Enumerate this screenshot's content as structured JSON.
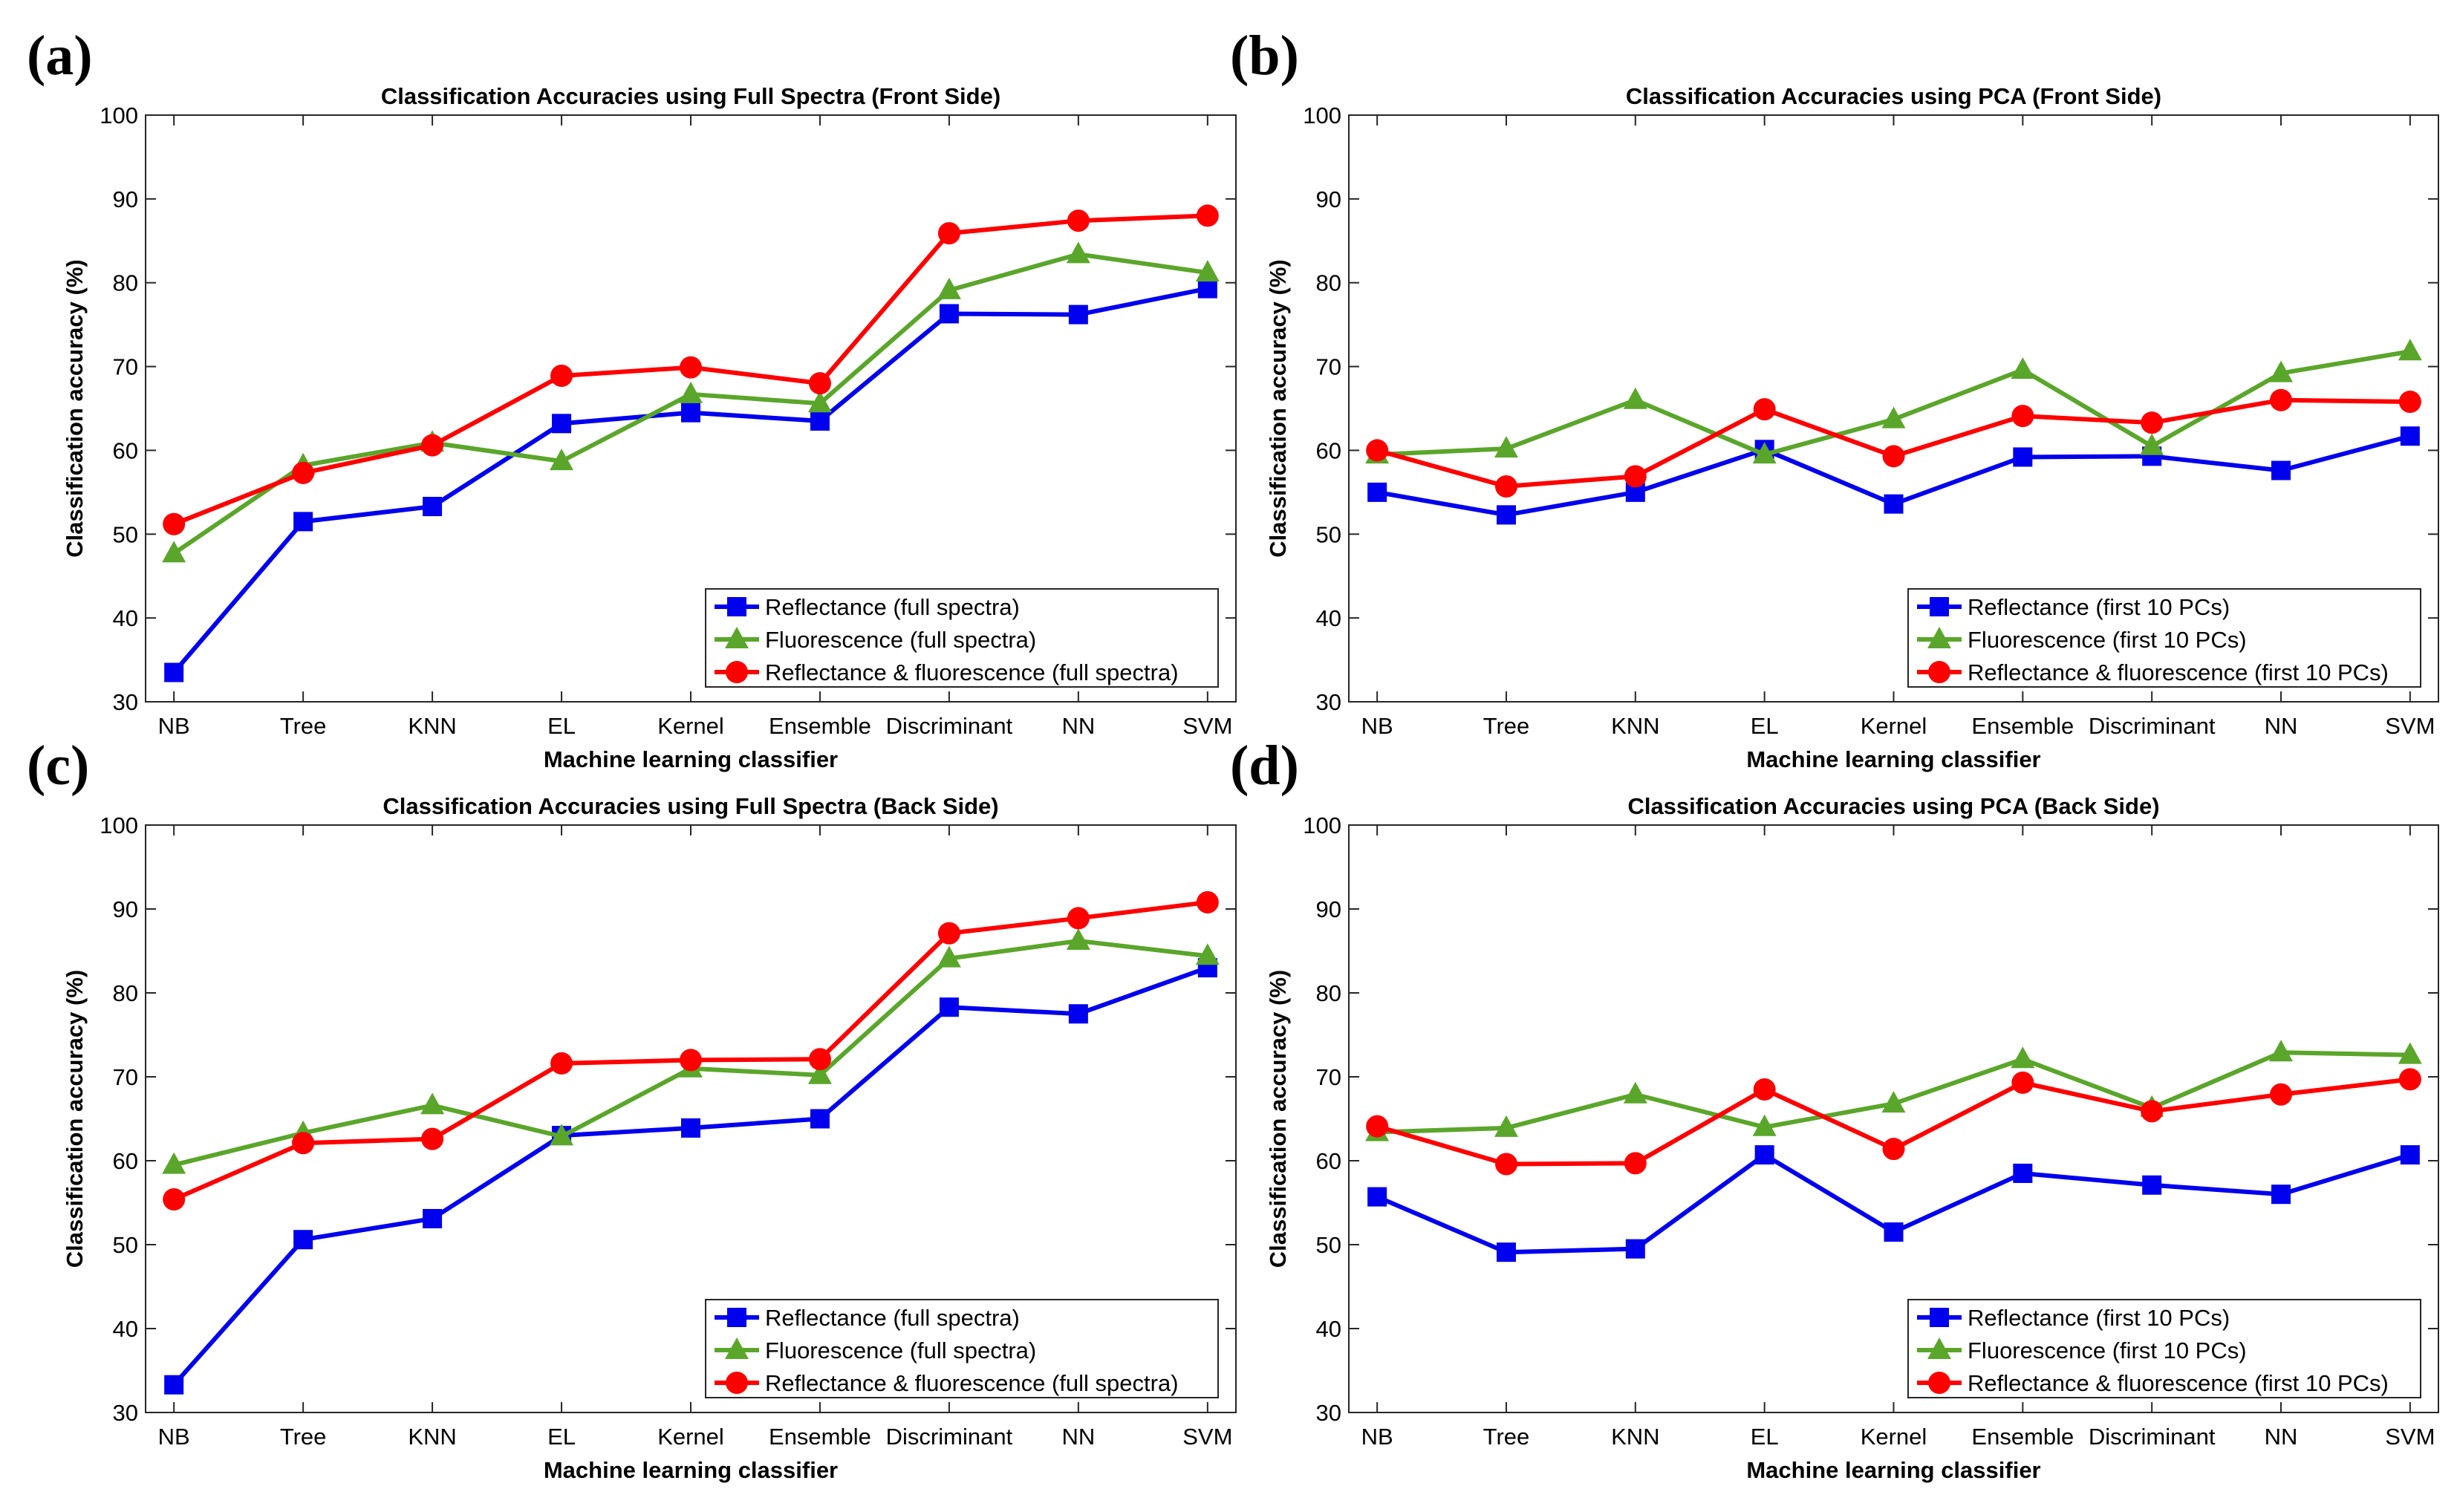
{
  "colors": {
    "reflectance": "#0000ee",
    "fluorescence": "#5aa62a",
    "combined": "#ff0000"
  },
  "chart_data": [
    {
      "panel": "(a)",
      "type": "line",
      "title": "Classification Accuracies using Full Spectra (Front Side)",
      "xlabel": "Machine learning classifier",
      "ylabel": "Classification accuracy (%)",
      "ylim": [
        30,
        100
      ],
      "yticks": [
        30,
        40,
        50,
        60,
        70,
        80,
        90,
        100
      ],
      "categories": [
        "NB",
        "Tree",
        "KNN",
        "EL",
        "Kernel",
        "Ensemble",
        "Discriminant",
        "NN",
        "SVM"
      ],
      "legend_position": "bottom-right",
      "series": [
        {
          "name": "Reflectance (full spectra)",
          "marker": "square",
          "values": [
            33.5,
            51.5,
            53.3,
            63.2,
            64.5,
            63.5,
            76.3,
            76.2,
            79.3
          ]
        },
        {
          "name": "Fluorescence (full spectra)",
          "marker": "triangle",
          "values": [
            47.7,
            58.2,
            60.9,
            58.7,
            66.7,
            65.6,
            79.1,
            83.4,
            81.2
          ]
        },
        {
          "name": "Reflectance & fluorescence (full spectra)",
          "marker": "circle",
          "values": [
            51.2,
            57.3,
            60.6,
            68.9,
            69.9,
            68.0,
            85.9,
            87.4,
            88.0
          ]
        }
      ]
    },
    {
      "panel": "(b)",
      "type": "line",
      "title": "Classification Accuracies using PCA (Front Side)",
      "xlabel": "Machine learning classifier",
      "ylabel": "Classification accuracy (%)",
      "ylim": [
        30,
        100
      ],
      "yticks": [
        30,
        40,
        50,
        60,
        70,
        80,
        90,
        100
      ],
      "categories": [
        "NB",
        "Tree",
        "KNN",
        "EL",
        "Kernel",
        "Ensemble",
        "Discriminant",
        "NN",
        "SVM"
      ],
      "legend_position": "bottom-right",
      "series": [
        {
          "name": "Reflectance (first 10 PCs)",
          "marker": "square",
          "values": [
            55.0,
            52.3,
            55.0,
            60.1,
            53.6,
            59.2,
            59.3,
            57.6,
            61.7
          ]
        },
        {
          "name": "Fluorescence (first 10 PCs)",
          "marker": "triangle",
          "values": [
            59.5,
            60.2,
            66.0,
            59.5,
            63.7,
            69.6,
            60.5,
            69.2,
            71.8
          ]
        },
        {
          "name": "Reflectance & fluorescence (first 10 PCs)",
          "marker": "circle",
          "values": [
            60.0,
            55.7,
            56.9,
            64.9,
            59.3,
            64.1,
            63.3,
            66.0,
            65.8
          ]
        }
      ]
    },
    {
      "panel": "(c)",
      "type": "line",
      "title": "Classification Accuracies using Full Spectra (Back Side)",
      "xlabel": "Machine learning classifier",
      "ylabel": "Classification accuracy (%)",
      "ylim": [
        30,
        100
      ],
      "yticks": [
        30,
        40,
        50,
        60,
        70,
        80,
        90,
        100
      ],
      "categories": [
        "NB",
        "Tree",
        "KNN",
        "EL",
        "Kernel",
        "Ensemble",
        "Discriminant",
        "NN",
        "SVM"
      ],
      "legend_position": "bottom-right",
      "series": [
        {
          "name": "Reflectance (full spectra)",
          "marker": "square",
          "values": [
            33.3,
            50.6,
            53.1,
            63.0,
            63.9,
            65.0,
            78.3,
            77.5,
            83.0
          ]
        },
        {
          "name": "Fluorescence (full spectra)",
          "marker": "triangle",
          "values": [
            59.5,
            63.3,
            66.6,
            62.9,
            71.0,
            70.2,
            84.1,
            86.2,
            84.4
          ]
        },
        {
          "name": "Reflectance & fluorescence (full spectra)",
          "marker": "circle",
          "values": [
            55.4,
            62.1,
            62.6,
            71.6,
            72.0,
            72.1,
            87.1,
            88.9,
            90.8
          ]
        }
      ]
    },
    {
      "panel": "(d)",
      "type": "line",
      "title": "Classification Accuracies using PCA (Back Side)",
      "xlabel": "Machine learning classifier",
      "ylabel": "Classification accuracy (%)",
      "ylim": [
        30,
        100
      ],
      "yticks": [
        30,
        40,
        50,
        60,
        70,
        80,
        90,
        100
      ],
      "categories": [
        "NB",
        "Tree",
        "KNN",
        "EL",
        "Kernel",
        "Ensemble",
        "Discriminant",
        "NN",
        "SVM"
      ],
      "legend_position": "bottom-right",
      "series": [
        {
          "name": "Reflectance (first 10 PCs)",
          "marker": "square",
          "values": [
            55.7,
            49.1,
            49.5,
            60.7,
            51.5,
            58.5,
            57.1,
            56.0,
            60.7
          ]
        },
        {
          "name": "Fluorescence (first 10 PCs)",
          "marker": "triangle",
          "values": [
            63.4,
            63.9,
            67.9,
            64.0,
            66.8,
            72.1,
            66.3,
            72.9,
            72.6
          ]
        },
        {
          "name": "Reflectance & fluorescence (first 10 PCs)",
          "marker": "circle",
          "values": [
            64.1,
            59.6,
            59.7,
            68.5,
            61.4,
            69.3,
            65.9,
            67.9,
            69.7
          ]
        }
      ]
    }
  ]
}
